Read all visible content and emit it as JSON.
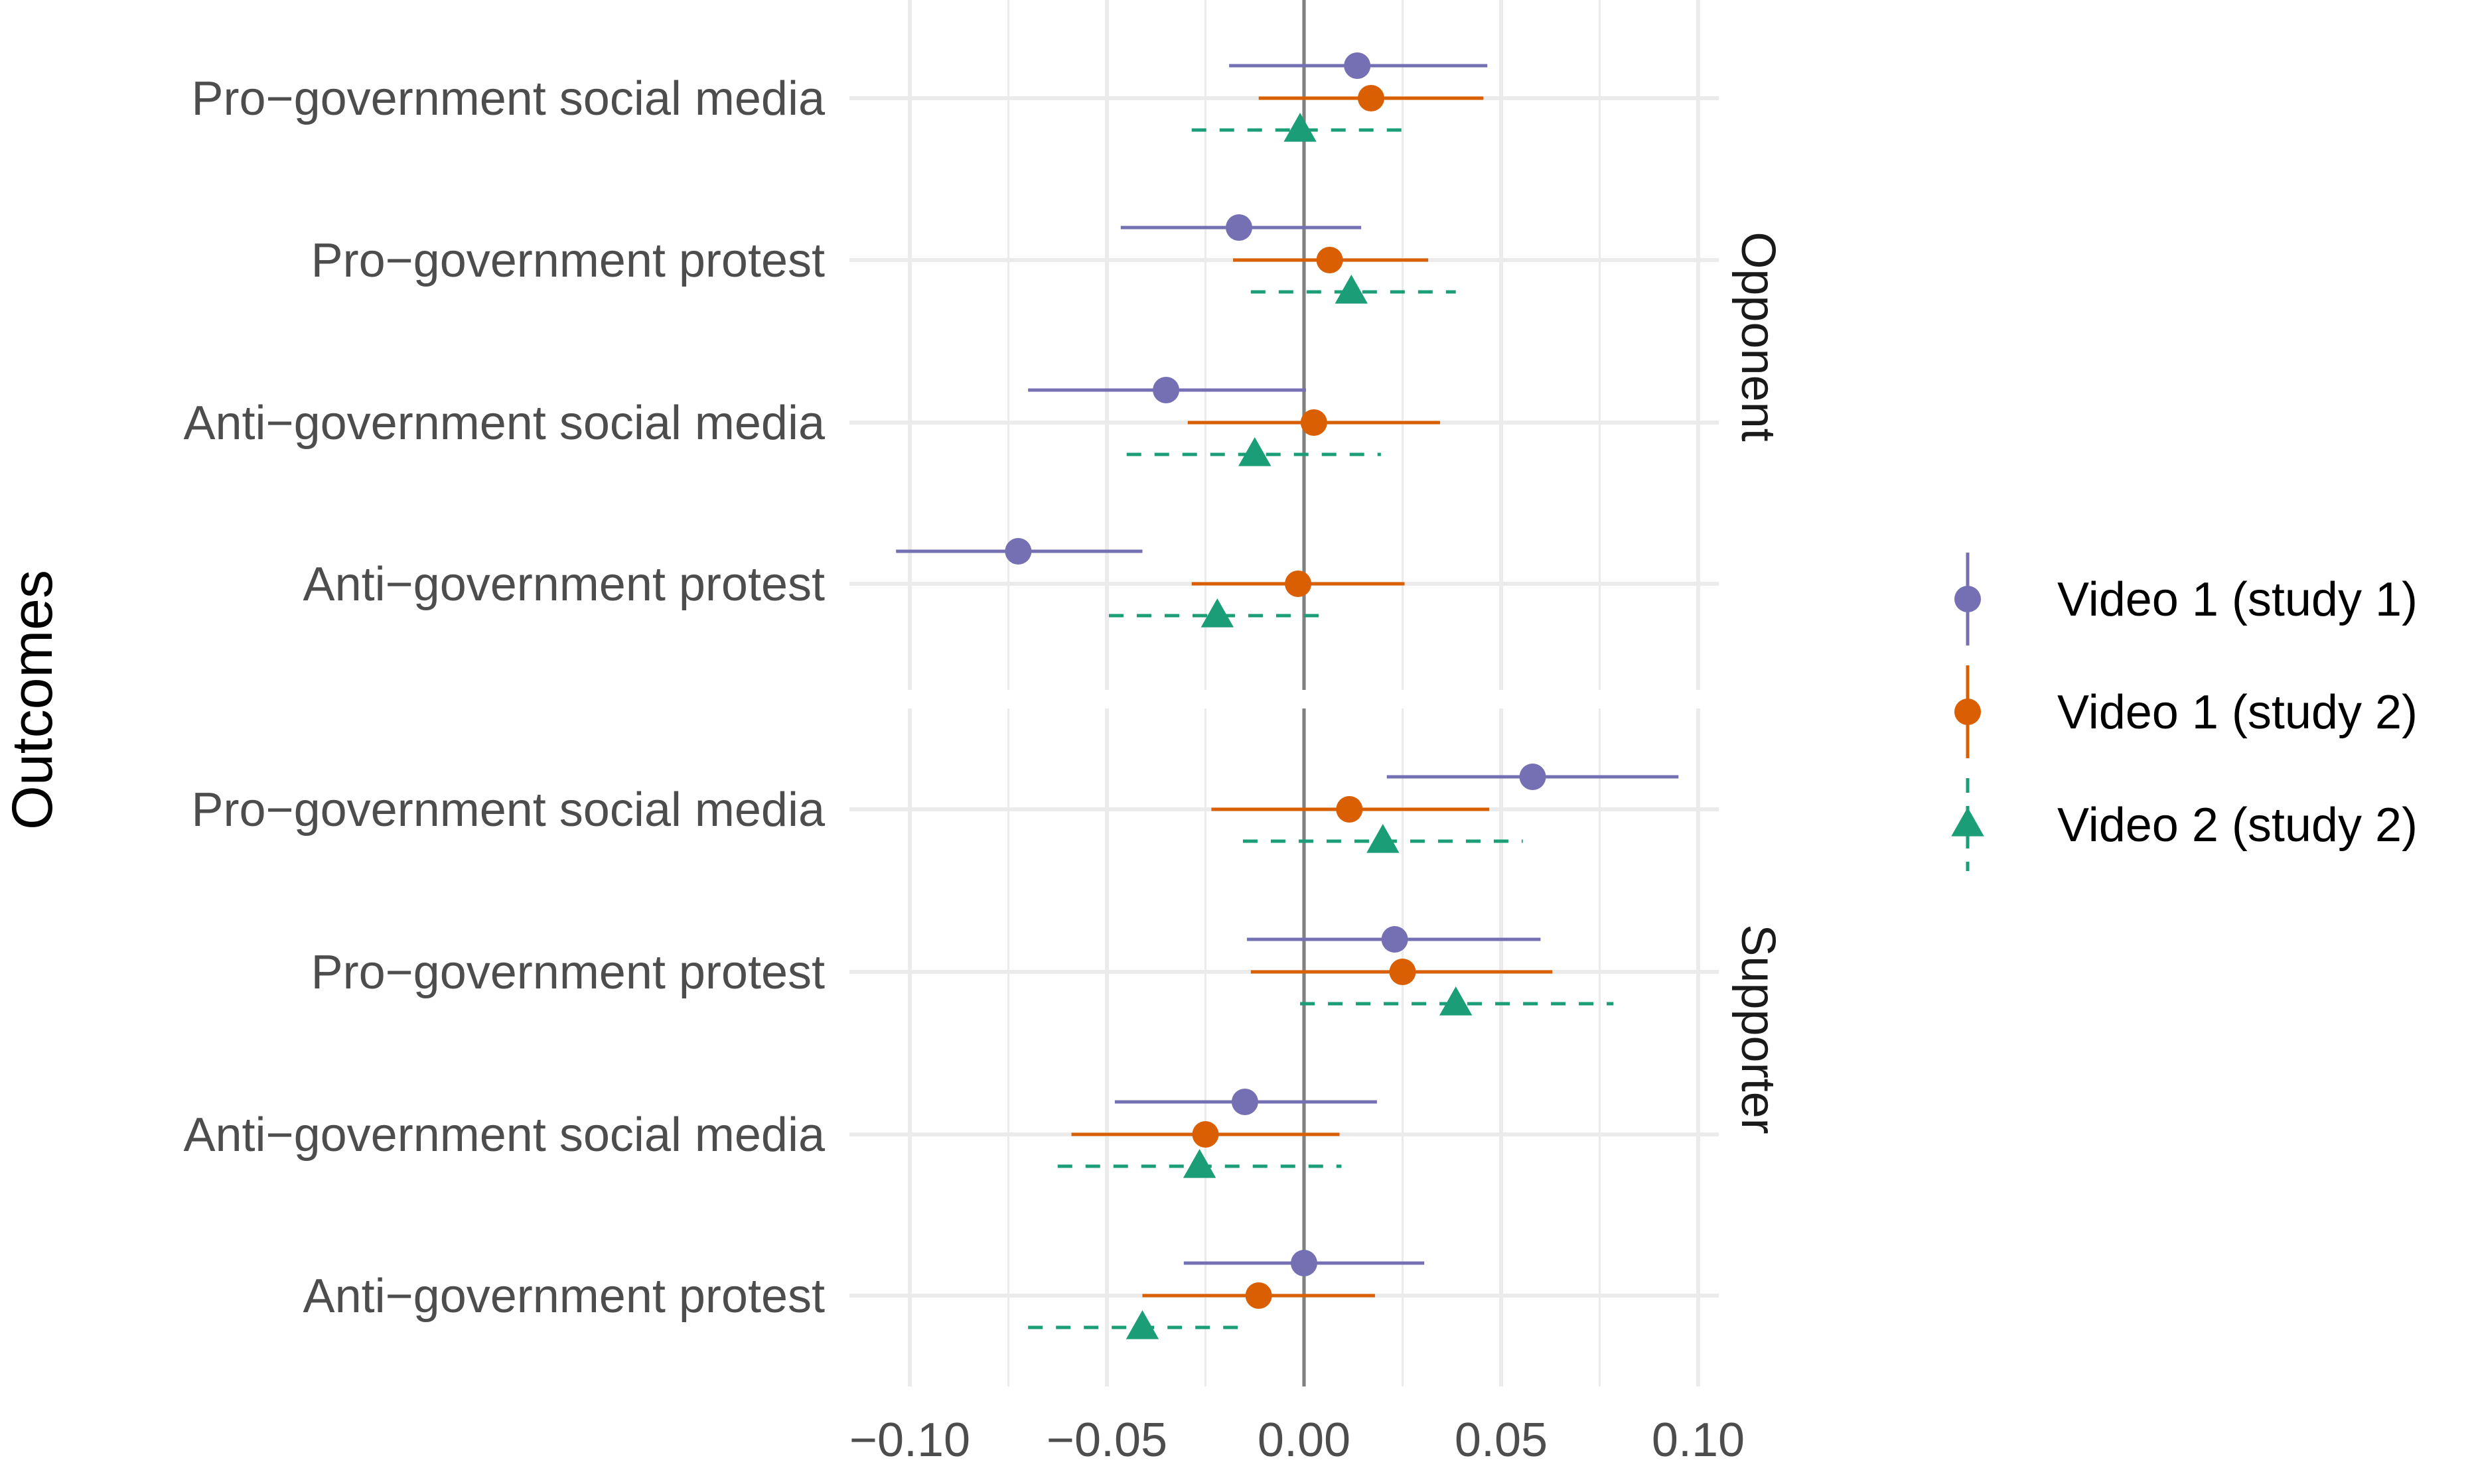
{
  "chart_data": {
    "type": "scatter",
    "ylabel": "Outcomes",
    "xlabel": "",
    "xlim": [
      -0.115,
      0.105
    ],
    "x_ticks": [
      "−0.10",
      "−0.05",
      "0.00",
      "0.05",
      "0.10"
    ],
    "x_tick_values": [
      -0.1,
      -0.05,
      0.0,
      0.05,
      0.1
    ],
    "grid": true,
    "reference_line_x": 0.0,
    "outcomes": [
      "Pro−government social media",
      "Pro−government protest",
      "Anti−government social media",
      "Anti−government protest"
    ],
    "panels": [
      "Opponent",
      "Supporter"
    ],
    "legend_position": "right",
    "series": [
      {
        "name": "Video 1 (study 1)",
        "color": "#7570b3",
        "marker": "circle",
        "line": "solid",
        "panels": {
          "Opponent": [
            {
              "outcome": "Pro−government social media",
              "estimate": 0.0135,
              "lower": -0.019,
              "upper": 0.0465
            },
            {
              "outcome": "Pro−government protest",
              "estimate": -0.0165,
              "lower": -0.0465,
              "upper": 0.0145
            },
            {
              "outcome": "Anti−government social media",
              "estimate": -0.035,
              "lower": -0.07,
              "upper": 0.0005
            },
            {
              "outcome": "Anti−government protest",
              "estimate": -0.0725,
              "lower": -0.1035,
              "upper": -0.041
            }
          ],
          "Supporter": [
            {
              "outcome": "Pro−government social media",
              "estimate": 0.058,
              "lower": 0.021,
              "upper": 0.095
            },
            {
              "outcome": "Pro−government protest",
              "estimate": 0.023,
              "lower": -0.0145,
              "upper": 0.06
            },
            {
              "outcome": "Anti−government social media",
              "estimate": -0.015,
              "lower": -0.048,
              "upper": 0.0185
            },
            {
              "outcome": "Anti−government protest",
              "estimate": 0.0,
              "lower": -0.0305,
              "upper": 0.0305
            }
          ]
        }
      },
      {
        "name": "Video 1 (study 2)",
        "color": "#d95f02",
        "marker": "circle",
        "line": "solid",
        "panels": {
          "Opponent": [
            {
              "outcome": "Pro−government social media",
              "estimate": 0.017,
              "lower": -0.0115,
              "upper": 0.0455
            },
            {
              "outcome": "Pro−government protest",
              "estimate": 0.0065,
              "lower": -0.018,
              "upper": 0.0315
            },
            {
              "outcome": "Anti−government social media",
              "estimate": 0.0025,
              "lower": -0.0295,
              "upper": 0.0345
            },
            {
              "outcome": "Anti−government protest",
              "estimate": -0.0015,
              "lower": -0.0285,
              "upper": 0.0255
            }
          ],
          "Supporter": [
            {
              "outcome": "Pro−government social media",
              "estimate": 0.0115,
              "lower": -0.0235,
              "upper": 0.047
            },
            {
              "outcome": "Pro−government protest",
              "estimate": 0.025,
              "lower": -0.0135,
              "upper": 0.063
            },
            {
              "outcome": "Anti−government social media",
              "estimate": -0.025,
              "lower": -0.059,
              "upper": 0.009
            },
            {
              "outcome": "Anti−government protest",
              "estimate": -0.0115,
              "lower": -0.041,
              "upper": 0.018
            }
          ]
        }
      },
      {
        "name": "Video 2 (study 2)",
        "color": "#1b9e77",
        "marker": "triangle",
        "line": "dashed",
        "panels": {
          "Opponent": [
            {
              "outcome": "Pro−government social media",
              "estimate": -0.001,
              "lower": -0.0285,
              "upper": 0.0265
            },
            {
              "outcome": "Pro−government protest",
              "estimate": 0.012,
              "lower": -0.0135,
              "upper": 0.0385
            },
            {
              "outcome": "Anti−government social media",
              "estimate": -0.0125,
              "lower": -0.045,
              "upper": 0.0195
            },
            {
              "outcome": "Anti−government protest",
              "estimate": -0.022,
              "lower": -0.0495,
              "upper": 0.0055
            }
          ],
          "Supporter": [
            {
              "outcome": "Pro−government social media",
              "estimate": 0.02,
              "lower": -0.0155,
              "upper": 0.0555
            },
            {
              "outcome": "Pro−government protest",
              "estimate": 0.0385,
              "lower": -0.001,
              "upper": 0.0785
            },
            {
              "outcome": "Anti−government social media",
              "estimate": -0.0265,
              "lower": -0.0625,
              "upper": 0.0095
            },
            {
              "outcome": "Anti−government protest",
              "estimate": -0.041,
              "lower": -0.07,
              "upper": -0.0135
            }
          ]
        }
      }
    ]
  }
}
